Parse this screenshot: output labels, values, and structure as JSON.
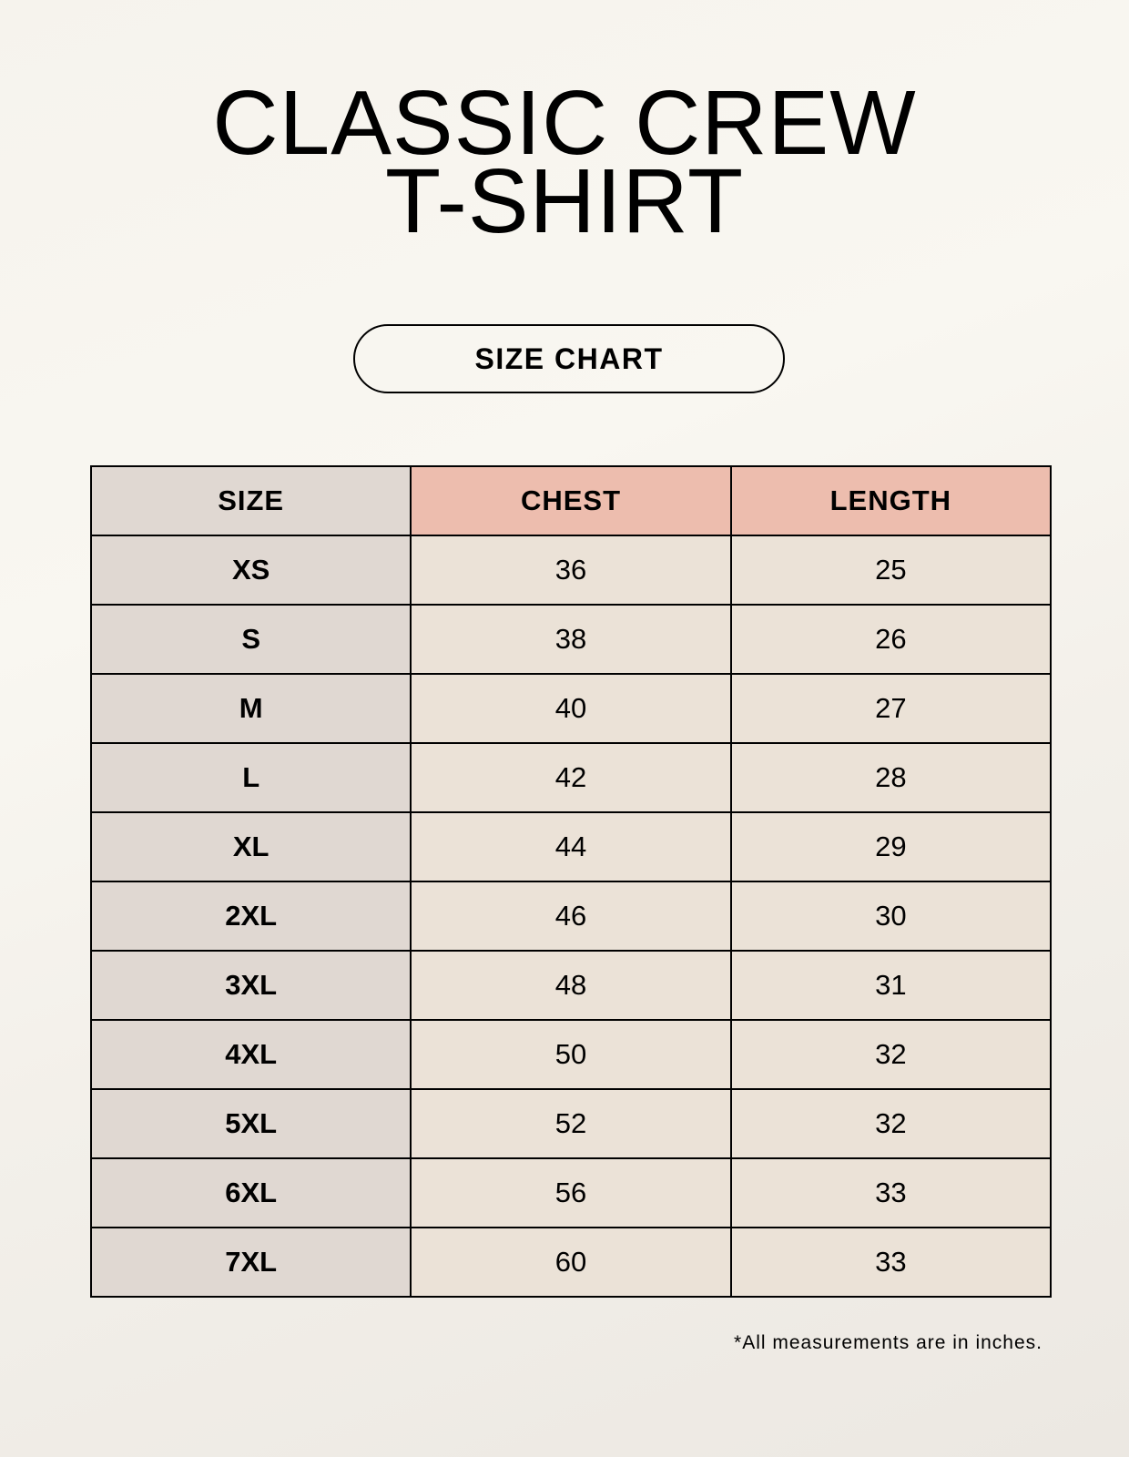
{
  "title_line1": "CLASSIC CREW",
  "title_line2": "T-SHIRT",
  "badge": "SIZE CHART",
  "table": {
    "headers": [
      "SIZE",
      "CHEST",
      "LENGTH"
    ],
    "rows": [
      [
        "XS",
        "36",
        "25"
      ],
      [
        "S",
        "38",
        "26"
      ],
      [
        "M",
        "40",
        "27"
      ],
      [
        "L",
        "42",
        "28"
      ],
      [
        "XL",
        "44",
        "29"
      ],
      [
        "2XL",
        "46",
        "30"
      ],
      [
        "3XL",
        "48",
        "31"
      ],
      [
        "4XL",
        "50",
        "32"
      ],
      [
        "5XL",
        "52",
        "32"
      ],
      [
        "6XL",
        "56",
        "33"
      ],
      [
        "7XL",
        "60",
        "33"
      ]
    ]
  },
  "footnote": "*All measurements are in inches.",
  "colors": {
    "size_column": "#e0d8d2",
    "measure_header": "#edbdae",
    "value_cells": "#ebe2d7"
  }
}
